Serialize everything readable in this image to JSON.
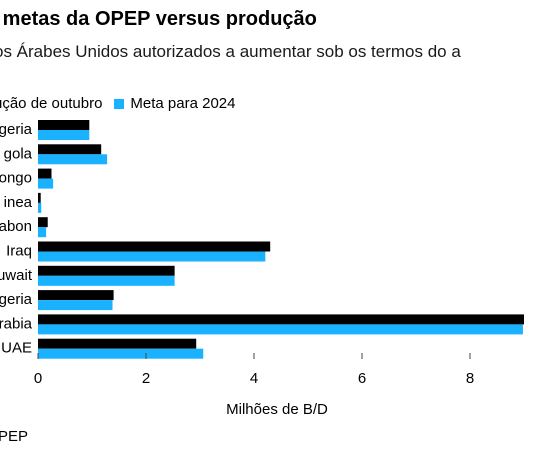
{
  "title": "s metas da OPEP versus produção",
  "subtitle": "os Árabes Unidos autorizados a aumentar sob os termos do a",
  "source": "PEP",
  "colors": {
    "production": "#000000",
    "target": "#1ab2ff",
    "axis": "#444444"
  },
  "chart_data": {
    "type": "bar",
    "orientation": "horizontal",
    "categories": [
      "geria",
      "gola",
      "ongo",
      "inea",
      "abon",
      "Iraq",
      "uwait",
      "geria",
      "rabia",
      "UAE"
    ],
    "series": [
      {
        "name": "ução de outubro",
        "values": [
          0.95,
          1.17,
          0.25,
          0.05,
          0.18,
          4.3,
          2.53,
          1.4,
          9.0,
          2.93
        ]
      },
      {
        "name": "Meta para 2024",
        "values": [
          0.95,
          1.28,
          0.28,
          0.06,
          0.15,
          4.21,
          2.53,
          1.38,
          8.98,
          3.06
        ]
      }
    ],
    "xlabel": "Milhões de B/D",
    "xlim": [
      0,
      9
    ],
    "xticks": [
      0,
      2,
      4,
      6,
      8
    ],
    "grid": false,
    "legend_position": "top-left"
  }
}
